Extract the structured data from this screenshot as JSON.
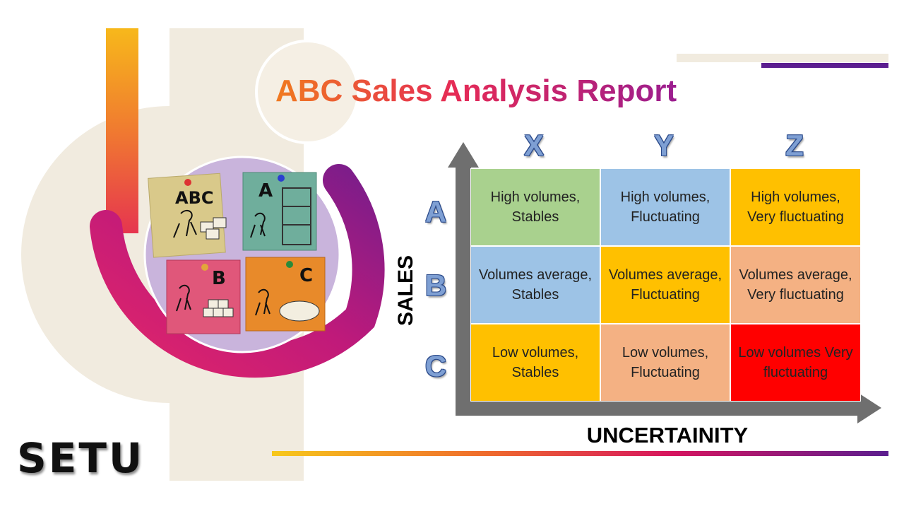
{
  "title": "ABC Sales Analysis Report",
  "columns": [
    "X",
    "Y",
    "Z"
  ],
  "rows": [
    "A",
    "B",
    "C"
  ],
  "axis_y_label": "SALES",
  "axis_x_label": "UNCERTAINITY",
  "matrix": [
    [
      {
        "text": "High volumes, Stables",
        "color": "#a9d18e"
      },
      {
        "text": "High volumes, Fluctuating",
        "color": "#9dc3e6"
      },
      {
        "text": "High volumes, Very fluctuating",
        "color": "#ffc000"
      }
    ],
    [
      {
        "text": "Volumes average, Stables",
        "color": "#9dc3e6"
      },
      {
        "text": "Volumes average, Fluctuating",
        "color": "#ffc000"
      },
      {
        "text": "Volumes average, Very fluctuating",
        "color": "#f4b183"
      }
    ],
    [
      {
        "text": "Low volumes, Stables",
        "color": "#ffc000"
      },
      {
        "text": "Low volumes, Fluctuating",
        "color": "#f4b183"
      },
      {
        "text": "Low volumes Very fluctuating",
        "color": "#ff0000"
      }
    ]
  ],
  "notes": [
    "ABC",
    "A",
    "B",
    "C"
  ],
  "logo": "SETU",
  "colors": {
    "accent_orange": "#f7a01a",
    "accent_magenta": "#d6145f",
    "accent_purple": "#5b1e8f",
    "beige": "#f1ebdf",
    "axis_gray": "#6f6f6f"
  }
}
